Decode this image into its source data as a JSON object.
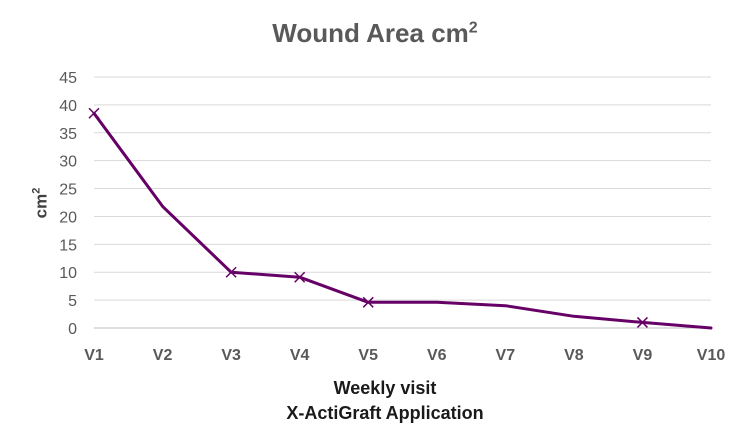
{
  "chart_data": {
    "type": "line",
    "title": "Wound Area cm",
    "title_superscript": "2",
    "ylabel": "cm",
    "ylabel_superscript": "2",
    "xlabel_lines": [
      "Weekly visit",
      "X-ActiGraft Application"
    ],
    "categories": [
      "V1",
      "V2",
      "V3",
      "V4",
      "V5",
      "V6",
      "V7",
      "V8",
      "V9",
      "V10"
    ],
    "series": [
      {
        "values": [
          38.5,
          21.8,
          10.0,
          9.1,
          4.6,
          4.6,
          4.0,
          2.1,
          1.0,
          0.0
        ],
        "color": "#660066",
        "marker": "x",
        "markers_on": [
          "V1",
          "V3",
          "V4",
          "V5",
          "V9"
        ]
      }
    ],
    "ylim": [
      0,
      45
    ],
    "yticks": [
      0,
      5,
      10,
      15,
      20,
      25,
      30,
      35,
      40,
      45
    ],
    "grid": true,
    "legend": "none",
    "colors": {
      "line": "#660066",
      "grid": "#d9d9d9",
      "text": "#595959"
    }
  }
}
